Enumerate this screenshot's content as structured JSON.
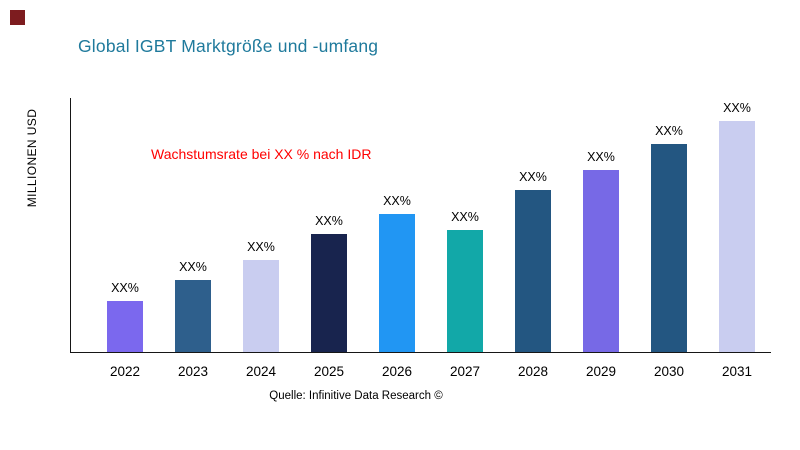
{
  "header": {
    "title": "Global IGBT Marktgröße und -umfang",
    "title_color": "#1f7a9c"
  },
  "corner_square_color": "#7d1c1f",
  "annotation": {
    "text": "Wachstumsrate bei XX % nach IDR",
    "color": "#ff0000"
  },
  "ylabel": "MILLIONEN USD",
  "source": "Quelle: Infinitive Data Research ©",
  "chart_data": {
    "type": "bar",
    "title": "Global IGBT Marktgröße und -umfang",
    "xlabel": "",
    "ylabel": "MILLIONEN USD",
    "categories": [
      "2022",
      "2023",
      "2024",
      "2025",
      "2026",
      "2027",
      "2028",
      "2029",
      "2030",
      "2031"
    ],
    "values": [
      22,
      31,
      40,
      51,
      60,
      53,
      70,
      79,
      90,
      100
    ],
    "bar_labels": [
      "XX%",
      "XX%",
      "XX%",
      "XX%",
      "XX%",
      "XX%",
      "XX%",
      "XX%",
      "XX%",
      "XX%"
    ],
    "bar_colors": [
      "#7b68ee",
      "#2e5f8c",
      "#c9cdf0",
      "#18244e",
      "#2196f3",
      "#12a8a8",
      "#235681",
      "#7769e6",
      "#235681",
      "#c9cdf0"
    ],
    "ylim": [
      0,
      110
    ],
    "grid": false,
    "legend": false,
    "annotation": "Wachstumsrate bei XX % nach IDR"
  }
}
